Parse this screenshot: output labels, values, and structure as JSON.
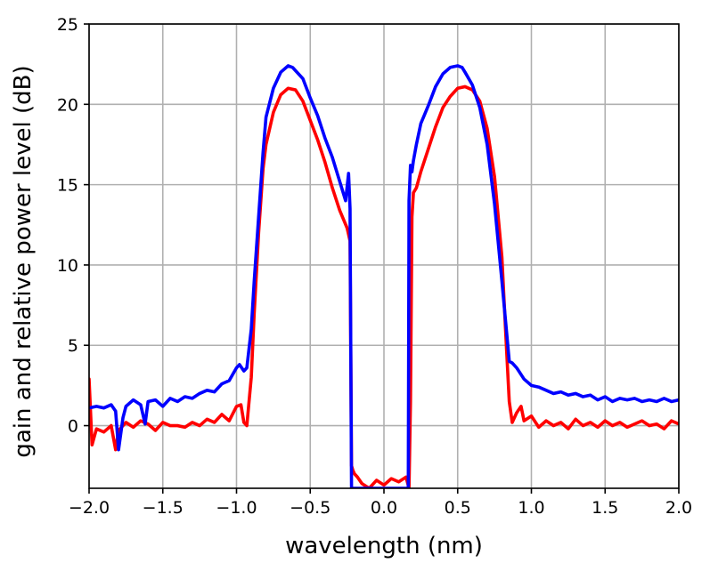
{
  "chart_data": {
    "type": "line",
    "title": "",
    "xlabel": "wavelength (nm)",
    "ylabel": "gain and relative power level (dB)",
    "xlim": [
      -2.0,
      2.0
    ],
    "ylim": [
      -3.9,
      25
    ],
    "xticks": [
      -2.0,
      -1.5,
      -1.0,
      -0.5,
      0.0,
      0.5,
      1.0,
      1.5,
      2.0
    ],
    "xtick_labels": [
      "−2.0",
      "−1.5",
      "−1.0",
      "−0.5",
      "0.0",
      "0.5",
      "1.0",
      "1.5",
      "2.0"
    ],
    "yticks": [
      0,
      5,
      10,
      15,
      20,
      25
    ],
    "ytick_labels": [
      "0",
      "5",
      "10",
      "15",
      "20",
      "25"
    ],
    "grid": true,
    "series": [
      {
        "color": "#ff0000",
        "x": [
          -2.0,
          -1.98,
          -1.95,
          -1.9,
          -1.85,
          -1.82,
          -1.8,
          -1.75,
          -1.7,
          -1.65,
          -1.6,
          -1.55,
          -1.5,
          -1.45,
          -1.4,
          -1.35,
          -1.3,
          -1.25,
          -1.2,
          -1.15,
          -1.1,
          -1.05,
          -1.0,
          -0.97,
          -0.95,
          -0.93,
          -0.9,
          -0.88,
          -0.85,
          -0.82,
          -0.8,
          -0.75,
          -0.7,
          -0.65,
          -0.6,
          -0.55,
          -0.5,
          -0.45,
          -0.4,
          -0.35,
          -0.3,
          -0.25,
          -0.23,
          -0.22,
          -0.21,
          -0.2,
          -0.18,
          -0.15,
          -0.1,
          -0.05,
          0.0,
          0.05,
          0.1,
          0.15,
          0.17,
          0.18,
          0.19,
          0.2,
          0.22,
          0.25,
          0.3,
          0.35,
          0.4,
          0.45,
          0.5,
          0.55,
          0.6,
          0.65,
          0.7,
          0.75,
          0.8,
          0.83,
          0.85,
          0.87,
          0.9,
          0.93,
          0.95,
          1.0,
          1.05,
          1.1,
          1.15,
          1.2,
          1.25,
          1.3,
          1.35,
          1.4,
          1.45,
          1.5,
          1.55,
          1.6,
          1.65,
          1.7,
          1.75,
          1.8,
          1.85,
          1.9,
          1.95,
          2.0
        ],
        "y": [
          2.9,
          -1.2,
          -0.2,
          -0.4,
          0.0,
          -1.5,
          -0.3,
          0.2,
          -0.1,
          0.3,
          0.1,
          -0.3,
          0.2,
          0.0,
          0.0,
          -0.1,
          0.2,
          0.0,
          0.4,
          0.2,
          0.7,
          0.3,
          1.2,
          1.3,
          0.2,
          0.0,
          3.0,
          7.0,
          12.0,
          16.0,
          17.5,
          19.5,
          20.6,
          21.0,
          20.9,
          20.2,
          19.0,
          17.8,
          16.4,
          14.8,
          13.4,
          12.3,
          11.5,
          -2.5,
          -2.8,
          -3.0,
          -3.2,
          -3.6,
          -3.9,
          -3.4,
          -3.7,
          -3.3,
          -3.5,
          -3.2,
          -3.9,
          1.5,
          13.0,
          14.5,
          14.8,
          15.8,
          17.2,
          18.6,
          19.8,
          20.5,
          21.0,
          21.1,
          20.9,
          20.2,
          18.5,
          15.5,
          10.5,
          5.0,
          1.5,
          0.2,
          0.8,
          1.2,
          0.3,
          0.6,
          -0.1,
          0.3,
          0.0,
          0.2,
          -0.2,
          0.4,
          0.0,
          0.2,
          -0.1,
          0.3,
          0.0,
          0.2,
          -0.1,
          0.1,
          0.3,
          0.0,
          0.1,
          -0.2,
          0.3,
          0.1
        ]
      },
      {
        "color": "#0000ff",
        "x": [
          -2.0,
          -1.95,
          -1.9,
          -1.85,
          -1.82,
          -1.8,
          -1.77,
          -1.75,
          -1.7,
          -1.65,
          -1.62,
          -1.6,
          -1.55,
          -1.5,
          -1.45,
          -1.4,
          -1.35,
          -1.3,
          -1.25,
          -1.2,
          -1.15,
          -1.1,
          -1.05,
          -1.0,
          -0.98,
          -0.95,
          -0.93,
          -0.9,
          -0.88,
          -0.85,
          -0.82,
          -0.8,
          -0.75,
          -0.7,
          -0.65,
          -0.62,
          -0.6,
          -0.55,
          -0.5,
          -0.45,
          -0.4,
          -0.35,
          -0.3,
          -0.26,
          -0.24,
          -0.23,
          -0.22,
          -0.215,
          0.165,
          0.17,
          0.18,
          0.19,
          0.2,
          0.22,
          0.25,
          0.3,
          0.35,
          0.4,
          0.45,
          0.5,
          0.53,
          0.55,
          0.6,
          0.65,
          0.7,
          0.75,
          0.8,
          0.83,
          0.85,
          0.87,
          0.9,
          0.95,
          1.0,
          1.05,
          1.1,
          1.15,
          1.2,
          1.25,
          1.3,
          1.35,
          1.4,
          1.45,
          1.5,
          1.55,
          1.6,
          1.65,
          1.7,
          1.75,
          1.8,
          1.85,
          1.9,
          1.95,
          2.0
        ],
        "y": [
          1.1,
          1.2,
          1.1,
          1.3,
          0.9,
          -1.5,
          0.5,
          1.2,
          1.6,
          1.3,
          0.1,
          1.5,
          1.6,
          1.2,
          1.7,
          1.5,
          1.8,
          1.7,
          2.0,
          2.2,
          2.1,
          2.6,
          2.8,
          3.6,
          3.8,
          3.4,
          3.6,
          6.0,
          9.0,
          13.0,
          17.0,
          19.2,
          21.0,
          22.0,
          22.4,
          22.3,
          22.1,
          21.6,
          20.4,
          19.3,
          17.9,
          16.7,
          15.2,
          14.0,
          15.7,
          13.5,
          -3.9,
          -3.9,
          -3.9,
          14.0,
          16.2,
          15.8,
          16.5,
          17.5,
          18.8,
          19.9,
          21.1,
          21.9,
          22.3,
          22.4,
          22.3,
          22.0,
          21.2,
          19.8,
          17.5,
          13.8,
          9.0,
          6.0,
          4.0,
          3.9,
          3.6,
          2.9,
          2.5,
          2.4,
          2.2,
          2.0,
          2.1,
          1.9,
          2.0,
          1.8,
          1.9,
          1.6,
          1.8,
          1.5,
          1.7,
          1.6,
          1.7,
          1.5,
          1.6,
          1.5,
          1.7,
          1.5,
          1.6
        ]
      }
    ]
  }
}
